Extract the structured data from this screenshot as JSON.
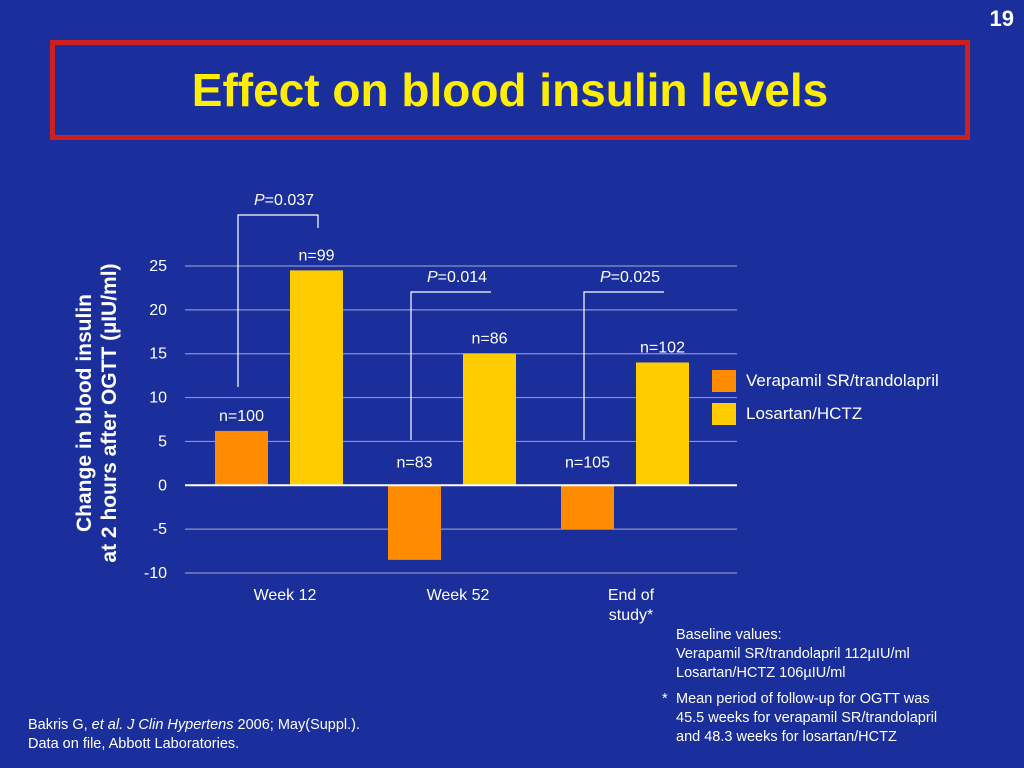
{
  "slide_number": "19",
  "title": "Effect on blood insulin levels",
  "colors": {
    "background": "#1a2e9c",
    "title": "#ffee00",
    "title_border": "#cc1f1f",
    "series1": "#ff8c00",
    "series2": "#ffcc00"
  },
  "chart_data": {
    "type": "bar",
    "categories": [
      [
        "Week 12"
      ],
      [
        "Week 52"
      ],
      [
        "End of",
        "study*"
      ]
    ],
    "series": [
      {
        "name": "Verapamil SR/trandolapril",
        "color": "#ff8c00",
        "values": [
          6.2,
          -8.5,
          -5
        ],
        "n_labels": [
          "n=100",
          "n=83",
          "n=105"
        ]
      },
      {
        "name": "Losartan/HCTZ",
        "color": "#ffcc00",
        "values": [
          24.5,
          15,
          14
        ],
        "n_labels": [
          "n=99",
          "n=86",
          "n=102"
        ]
      }
    ],
    "ylabel_lines": [
      "Change in blood insulin",
      "at 2 hours after OGTT (µIU/ml)"
    ],
    "ylim": [
      -10,
      25
    ],
    "yticks": [
      25,
      20,
      15,
      10,
      5,
      0,
      -5,
      -10
    ],
    "grid": true,
    "p_values": [
      {
        "prefix": "P",
        "value": "=0.037"
      },
      {
        "prefix": "P",
        "value": "=0.014"
      },
      {
        "prefix": "P",
        "value": "=0.025"
      }
    ],
    "legend_position": "right"
  },
  "baseline": {
    "heading": "Baseline values:",
    "lines": [
      "Verapamil SR/trandolapril 112µIU/ml",
      "Losartan/HCTZ 106µIU/ml"
    ]
  },
  "footnote": {
    "marker": "*",
    "lines": [
      "Mean period of follow-up for OGTT was",
      "45.5 weeks for verapamil SR/trandolapril",
      "and 48.3 weeks for losartan/HCTZ"
    ]
  },
  "reference": {
    "author": "Bakris G, ",
    "etal_journal": "et al. J Clin Hypertens",
    "rest": " 2006; May(Suppl.).",
    "line2": "Data on file, Abbott Laboratories."
  }
}
